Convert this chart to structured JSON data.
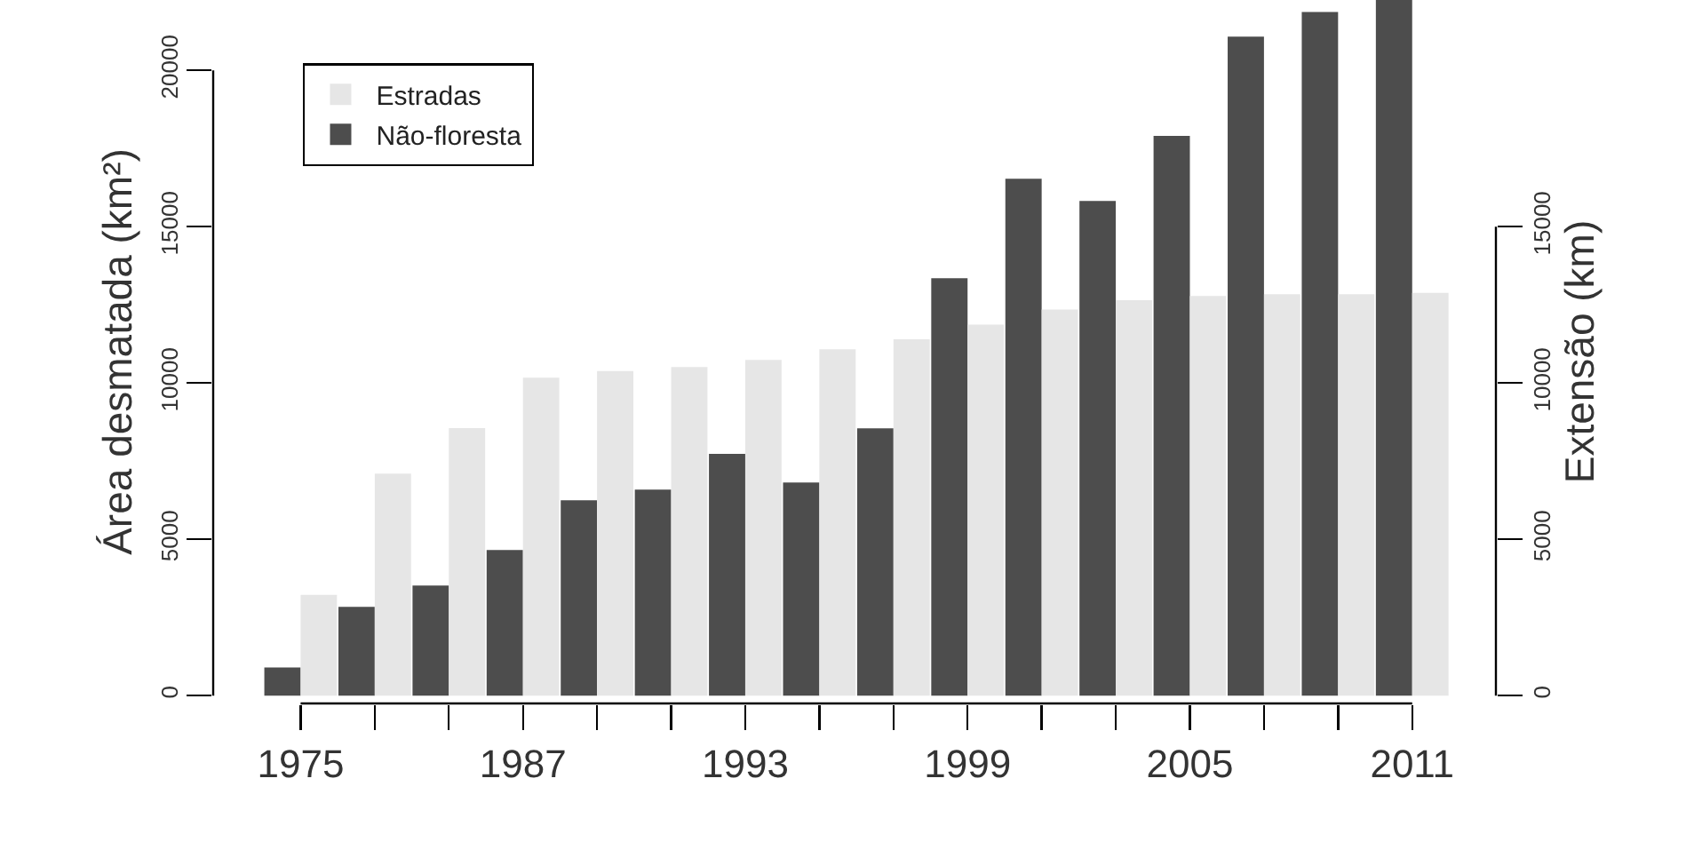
{
  "chart_data": {
    "type": "bar",
    "ylabel": "Área desmatada (km²)",
    "y2label": "Extensão (km)",
    "categories": [
      "1975",
      null,
      null,
      "1987",
      null,
      null,
      "1993",
      null,
      null,
      "1999",
      null,
      null,
      "2005",
      null,
      null,
      "2011"
    ],
    "series": [
      {
        "name": "Não-floresta",
        "color": "#4d4d4d",
        "values": [
          900,
          2840,
          3520,
          4660,
          6250,
          6590,
          7730,
          6820,
          8550,
          13350,
          16530,
          15820,
          17900,
          21080,
          21870,
          22250
        ]
      },
      {
        "name": "Estradas",
        "color": "#e6e6e6",
        "values": [
          3220,
          7100,
          8560,
          10170,
          10380,
          10510,
          10740,
          11080,
          11400,
          11870,
          12350,
          12650,
          12780,
          12840,
          12840,
          12880
        ]
      }
    ],
    "ylim": [
      -250,
      22250
    ],
    "yticks": [
      0,
      5000,
      10000,
      15000,
      20000
    ],
    "y2lim": [
      -250,
      22250
    ],
    "y2ticks": [
      0,
      5000,
      10000,
      15000
    ],
    "legend": "top left",
    "grid": false
  }
}
